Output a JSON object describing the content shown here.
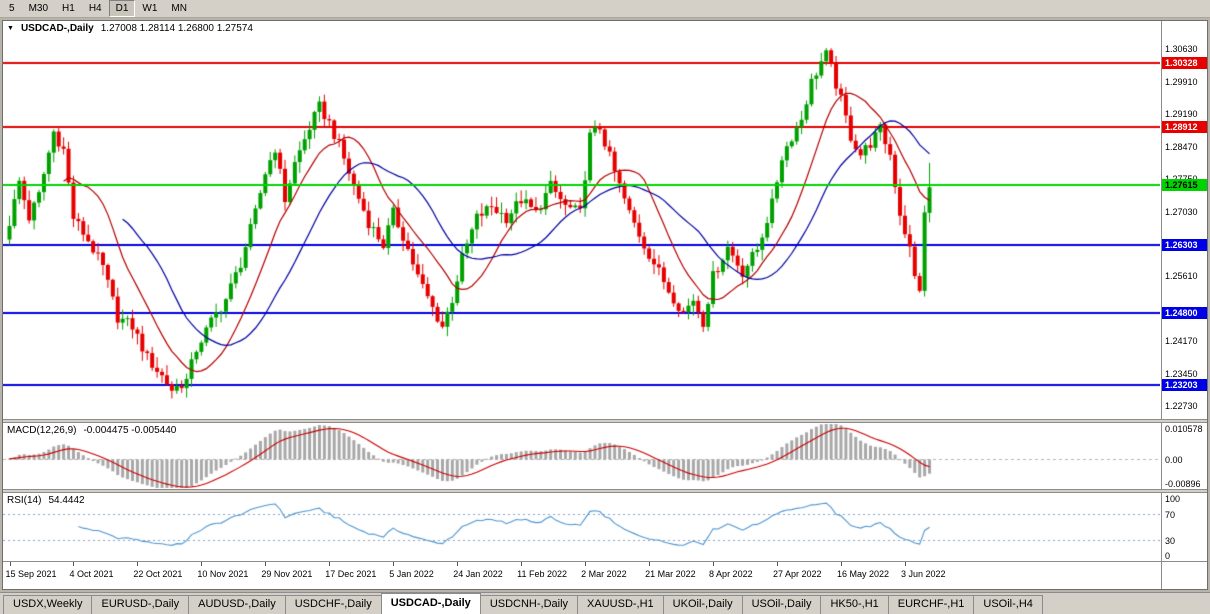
{
  "colors": {
    "window_bg": "#d4d0c8",
    "chart_bg": "#ffffff",
    "candle_up": "#00a000",
    "candle_down": "#e60000",
    "ma_fast": "#b40000",
    "ma_slow": "#0000a0",
    "macd_hist": "#a8a8a8",
    "macd_signal": "#cc0000",
    "rsi_line": "#4f96d2",
    "rsi_levels": "#8aa4cc",
    "macd_zero": "#b5b5b5",
    "level_red": "#e60000",
    "level_blue": "#0000e6",
    "level_green": "#00d400"
  },
  "toolbar": {
    "timeframes": [
      "5",
      "M30",
      "H1",
      "H4",
      "D1",
      "W1",
      "MN"
    ],
    "active": "D1"
  },
  "chart": {
    "header": {
      "dropdown_icon": "▼",
      "symbol": "USDCAD-,Daily",
      "ohlc": "1.27008  1.28114  1.26800  1.27574"
    },
    "scale": {
      "top": 1.3125,
      "bottom": 1.2245
    },
    "price_axis": [
      {
        "text": "1.30630",
        "price": 1.3063,
        "style": "tick"
      },
      {
        "text": "1.30328",
        "price": 1.30328,
        "style": "badge",
        "bg": "#e60000",
        "fg": "#ffffff"
      },
      {
        "text": "1.29910",
        "price": 1.2991,
        "style": "tick"
      },
      {
        "text": "1.29190",
        "price": 1.2919,
        "style": "tick"
      },
      {
        "text": "1.28912",
        "price": 1.28912,
        "style": "badge",
        "bg": "#e60000",
        "fg": "#ffffff"
      },
      {
        "text": "1.28470",
        "price": 1.2847,
        "style": "tick"
      },
      {
        "text": "1.27750",
        "price": 1.2775,
        "style": "tick"
      },
      {
        "text": "1.27615",
        "price": 1.27615,
        "style": "badge",
        "bg": "#00d400",
        "fg": "#000000"
      },
      {
        "text": "1.27030",
        "price": 1.2703,
        "style": "tick"
      },
      {
        "text": "1.26303",
        "price": 1.26303,
        "style": "badge",
        "bg": "#0000e6",
        "fg": "#ffffff"
      },
      {
        "text": "1.25610",
        "price": 1.2561,
        "style": "tick"
      },
      {
        "text": "1.24800",
        "price": 1.248,
        "style": "badge",
        "bg": "#0000e6",
        "fg": "#ffffff"
      },
      {
        "text": "1.24170",
        "price": 1.2417,
        "style": "tick"
      },
      {
        "text": "1.23450",
        "price": 1.2345,
        "style": "tick"
      },
      {
        "text": "1.23203",
        "price": 1.23203,
        "style": "badge",
        "bg": "#0000e6",
        "fg": "#ffffff"
      },
      {
        "text": "1.22730",
        "price": 1.2273,
        "style": "tick"
      }
    ],
    "levels": [
      {
        "price": 1.30328,
        "color": "#e60000",
        "width": 2
      },
      {
        "price": 1.28912,
        "color": "#e60000",
        "width": 2
      },
      {
        "price": 1.26303,
        "color": "#0000e6",
        "width": 2
      },
      {
        "price": 1.248,
        "color": "#0000e6",
        "width": 2
      },
      {
        "price": 1.23203,
        "color": "#0000e6",
        "width": 2
      }
    ],
    "current_price": {
      "price": 1.27615,
      "color": "#00d400",
      "width": 2
    }
  },
  "macd": {
    "header": {
      "name": "MACD(12,26,9)",
      "values": "-0.004475 -0.005440"
    },
    "scale": {
      "max": 0.010578,
      "min": -0.00896
    },
    "axis": [
      {
        "text": "0.010578",
        "value": 0.010578
      },
      {
        "text": "0.00",
        "value": 0
      },
      {
        "text": "-0.00896",
        "value": -0.00896
      }
    ]
  },
  "rsi": {
    "header": {
      "name": "RSI(14)",
      "value": "54.4442"
    },
    "levels": [
      70,
      30
    ],
    "axis": [
      {
        "text": "100",
        "value": 100
      },
      {
        "text": "70",
        "value": 70
      },
      {
        "text": "30",
        "value": 30
      },
      {
        "text": "0",
        "value": 0
      }
    ]
  },
  "tabs": {
    "items": [
      "USDX,Weekly",
      "EURUSD-,Daily",
      "AUDUSD-,Daily",
      "USDCHF-,Daily",
      "USDCAD-,Daily",
      "USDCNH-,Daily",
      "XAUUSD-,H1",
      "UKOil-,Daily",
      "USOil-,Daily",
      "HK50-,H1",
      "EURCHF-,H1",
      "USOil-,H4"
    ],
    "active": "USDCAD-,Daily"
  },
  "chart_data": {
    "type": "candlestick",
    "symbol": "USDCAD",
    "timeframe": "Daily",
    "title": "USDCAD-,Daily",
    "bars_count": 188,
    "last_bar": {
      "open": 1.27008,
      "high": 1.28114,
      "low": 1.268,
      "close": 1.27574
    },
    "y_axis_range": [
      1.2245,
      1.3125
    ],
    "horizontal_levels": [
      1.30328,
      1.28912,
      1.27615,
      1.26303,
      1.248,
      1.23203
    ],
    "date_labels": [
      "15 Sep 2021",
      "4 Oct 2021",
      "22 Oct 2021",
      "10 Nov 2021",
      "29 Nov 2021",
      "17 Dec 2021",
      "5 Jan 2022",
      "24 Jan 2022",
      "11 Feb 2022",
      "2 Mar 2022",
      "21 Mar 2022",
      "8 Apr 2022",
      "27 Apr 2022",
      "16 May 2022",
      "3 Jun 2022"
    ],
    "date_label_step": 13,
    "close_waypoints": [
      [
        0,
        1.268
      ],
      [
        2,
        1.277
      ],
      [
        4,
        1.269
      ],
      [
        6,
        1.274
      ],
      [
        9,
        1.288
      ],
      [
        11,
        1.284
      ],
      [
        13,
        1.269
      ],
      [
        16,
        1.264
      ],
      [
        19,
        1.258
      ],
      [
        22,
        1.247
      ],
      [
        25,
        1.245
      ],
      [
        28,
        1.238
      ],
      [
        31,
        1.234
      ],
      [
        33,
        1.231
      ],
      [
        36,
        1.233
      ],
      [
        38,
        1.24
      ],
      [
        41,
        1.246
      ],
      [
        44,
        1.251
      ],
      [
        47,
        1.259
      ],
      [
        50,
        1.27
      ],
      [
        52,
        1.279
      ],
      [
        54,
        1.2845
      ],
      [
        56,
        1.273
      ],
      [
        58,
        1.281
      ],
      [
        61,
        1.289
      ],
      [
        63,
        1.2935
      ],
      [
        65,
        1.29
      ],
      [
        67,
        1.285
      ],
      [
        70,
        1.276
      ],
      [
        73,
        1.268
      ],
      [
        76,
        1.263
      ],
      [
        78,
        1.27
      ],
      [
        80,
        1.265
      ],
      [
        83,
        1.256
      ],
      [
        86,
        1.249
      ],
      [
        88,
        1.245
      ],
      [
        90,
        1.251
      ],
      [
        92,
        1.26
      ],
      [
        95,
        1.269
      ],
      [
        98,
        1.2715
      ],
      [
        101,
        1.269
      ],
      [
        104,
        1.273
      ],
      [
        107,
        1.27
      ],
      [
        110,
        1.276
      ],
      [
        113,
        1.2715
      ],
      [
        116,
        1.27
      ],
      [
        118,
        1.287
      ],
      [
        120,
        1.289
      ],
      [
        123,
        1.279
      ],
      [
        126,
        1.27
      ],
      [
        129,
        1.263
      ],
      [
        131,
        1.259
      ],
      [
        134,
        1.253
      ],
      [
        137,
        1.248
      ],
      [
        139,
        1.251
      ],
      [
        141,
        1.246
      ],
      [
        143,
        1.256
      ],
      [
        146,
        1.2625
      ],
      [
        149,
        1.257
      ],
      [
        152,
        1.262
      ],
      [
        155,
        1.272
      ],
      [
        157,
        1.2825
      ],
      [
        159,
        1.287
      ],
      [
        161,
        1.291
      ],
      [
        163,
        1.299
      ],
      [
        165,
        1.3035
      ],
      [
        166,
        1.305
      ],
      [
        167,
        1.302
      ],
      [
        169,
        1.295
      ],
      [
        171,
        1.287
      ],
      [
        173,
        1.283
      ],
      [
        175,
        1.2855
      ],
      [
        177,
        1.2885
      ],
      [
        179,
        1.283
      ],
      [
        181,
        1.27
      ],
      [
        183,
        1.262
      ],
      [
        184,
        1.256
      ],
      [
        185,
        1.253
      ],
      [
        186,
        1.27
      ],
      [
        187,
        1.27574
      ]
    ],
    "indicators": {
      "ma_fast_period": 12,
      "ma_slow_period": 24,
      "macd": {
        "fast": 12,
        "slow": 26,
        "signal": 9,
        "last_main": -0.004475,
        "last_signal": -0.00544,
        "axis_max": 0.010578,
        "axis_min": -0.00896
      },
      "rsi": {
        "period": 14,
        "last": 54.4442,
        "levels": [
          70,
          30
        ]
      }
    }
  }
}
